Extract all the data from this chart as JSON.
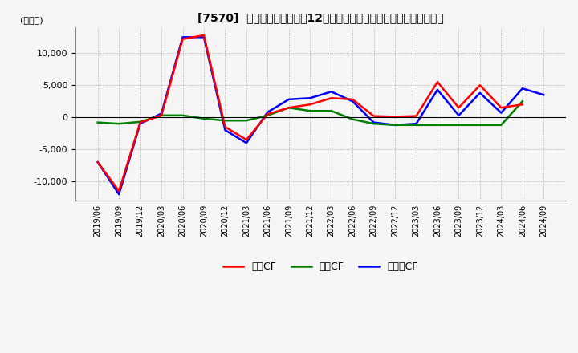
{
  "title": "[7570]  キャッシュフローの12か月移動合計の対前年同期増減額の推移",
  "ylabel": "(百万円)",
  "ylim": [
    -13000,
    14000
  ],
  "yticks": [
    -10000,
    -5000,
    0,
    5000,
    10000
  ],
  "colors": {
    "営業CF": "#ff0000",
    "投資CF": "#008000",
    "フリーCF": "#0000ff"
  },
  "x_labels": [
    "2019/06",
    "2019/09",
    "2019/12",
    "2020/03",
    "2020/06",
    "2020/09",
    "2020/12",
    "2021/03",
    "2021/06",
    "2021/09",
    "2021/12",
    "2022/03",
    "2022/06",
    "2022/09",
    "2022/12",
    "2023/03",
    "2023/06",
    "2023/09",
    "2023/12",
    "2024/03",
    "2024/06",
    "2024/09"
  ],
  "営業CF": [
    -7000,
    -11500,
    -800,
    300,
    12200,
    12800,
    -1500,
    -3500,
    500,
    1500,
    2000,
    3000,
    2800,
    200,
    100,
    200,
    5500,
    1500,
    5000,
    1500,
    2000,
    null
  ],
  "投資CF": [
    -800,
    -1000,
    -700,
    300,
    300,
    -200,
    -500,
    -500,
    300,
    1500,
    1000,
    1000,
    -300,
    -1000,
    -1200,
    -1200,
    -1200,
    -1200,
    -1200,
    -1200,
    2500,
    null
  ],
  "フリーCF": [
    -7000,
    -12000,
    -1000,
    600,
    12500,
    12500,
    -2000,
    -4000,
    800,
    2800,
    3000,
    4000,
    2500,
    -800,
    -1200,
    -1000,
    4300,
    300,
    3800,
    700,
    4500,
    3500
  ],
  "background_color": "#f5f5f5",
  "grid_color": "#aaaaaa",
  "grid_style": "dotted"
}
